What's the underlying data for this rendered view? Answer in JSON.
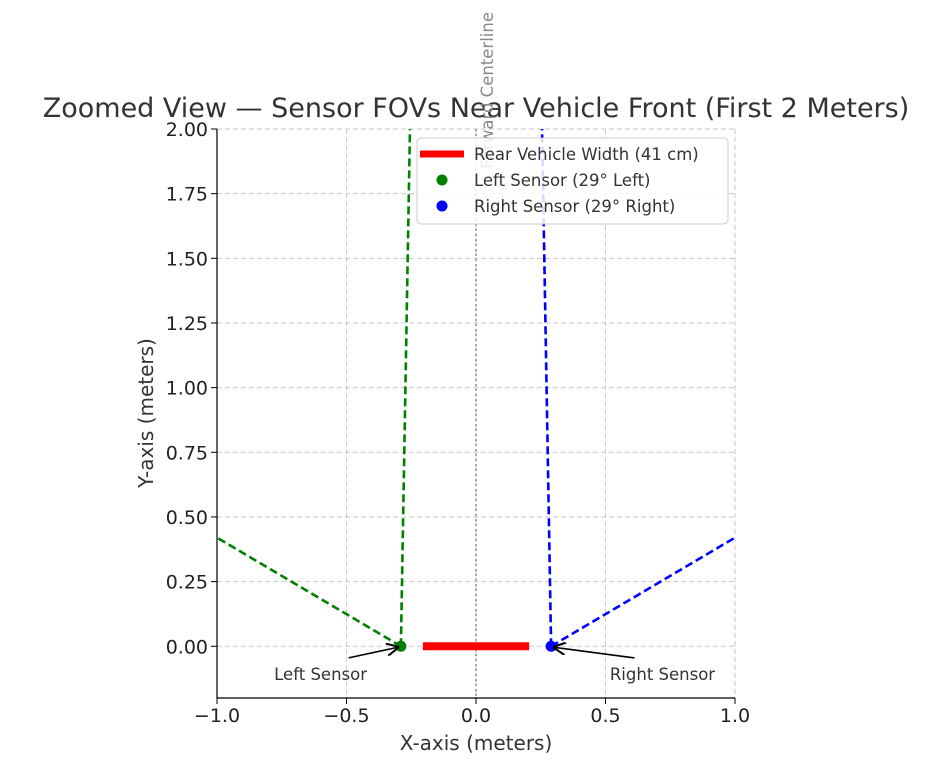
{
  "chart_data": {
    "type": "line",
    "title": "Zoomed View — Sensor FOVs Near Vehicle Front (First 2 Meters)",
    "xlabel": "X-axis (meters)",
    "ylabel": "Y-axis (meters)",
    "xlim": [
      -1.0,
      1.0
    ],
    "ylim": [
      -0.2,
      2.0
    ],
    "xticks": [
      -1.0,
      -0.5,
      0.0,
      0.5,
      1.0
    ],
    "xtick_labels": [
      "−1.0",
      "−0.5",
      "0.0",
      "0.5",
      "1.0"
    ],
    "yticks": [
      0.0,
      0.25,
      0.5,
      0.75,
      1.0,
      1.25,
      1.5,
      1.75,
      2.0
    ],
    "ytick_labels": [
      "0.00",
      "0.25",
      "0.50",
      "0.75",
      "1.00",
      "1.25",
      "1.50",
      "1.75",
      "2.00"
    ],
    "grid": true,
    "legend_position": "top-right",
    "centerline": {
      "x": 0.0,
      "label": "Forward Centerline",
      "color": "#888888"
    },
    "series": [
      {
        "name": "Rear Vehicle Width (41 cm)",
        "style": "thick-segment",
        "color": "#ff0000",
        "x": [
          -0.205,
          0.205
        ],
        "y": [
          0.0,
          0.0
        ]
      },
      {
        "name": "Left Sensor (29° Left)",
        "style": "marker",
        "color": "#008000",
        "x": [
          -0.29
        ],
        "y": [
          0.0
        ]
      },
      {
        "name": "Right Sensor (29° Right)",
        "style": "marker",
        "color": "#0000ff",
        "x": [
          0.29
        ],
        "y": [
          0.0
        ]
      }
    ],
    "fov_lines": [
      {
        "color": "#008000",
        "x": [
          -0.29,
          -1.0
        ],
        "y": [
          0.0,
          0.42
        ]
      },
      {
        "color": "#008000",
        "x": [
          -0.29,
          -0.255
        ],
        "y": [
          0.0,
          2.0
        ]
      },
      {
        "color": "#0000ff",
        "x": [
          0.29,
          1.0
        ],
        "y": [
          0.0,
          0.42
        ]
      },
      {
        "color": "#0000ff",
        "x": [
          0.29,
          0.255
        ],
        "y": [
          0.0,
          2.0
        ]
      }
    ],
    "annotations": [
      {
        "text": "Left Sensor",
        "target_x": -0.29,
        "target_y": 0.0,
        "text_x": -0.6,
        "text_y": -0.13,
        "anchor": "middle"
      },
      {
        "text": "Right Sensor",
        "target_x": 0.29,
        "target_y": 0.0,
        "text_x": 0.72,
        "text_y": -0.13,
        "anchor": "middle"
      }
    ]
  }
}
